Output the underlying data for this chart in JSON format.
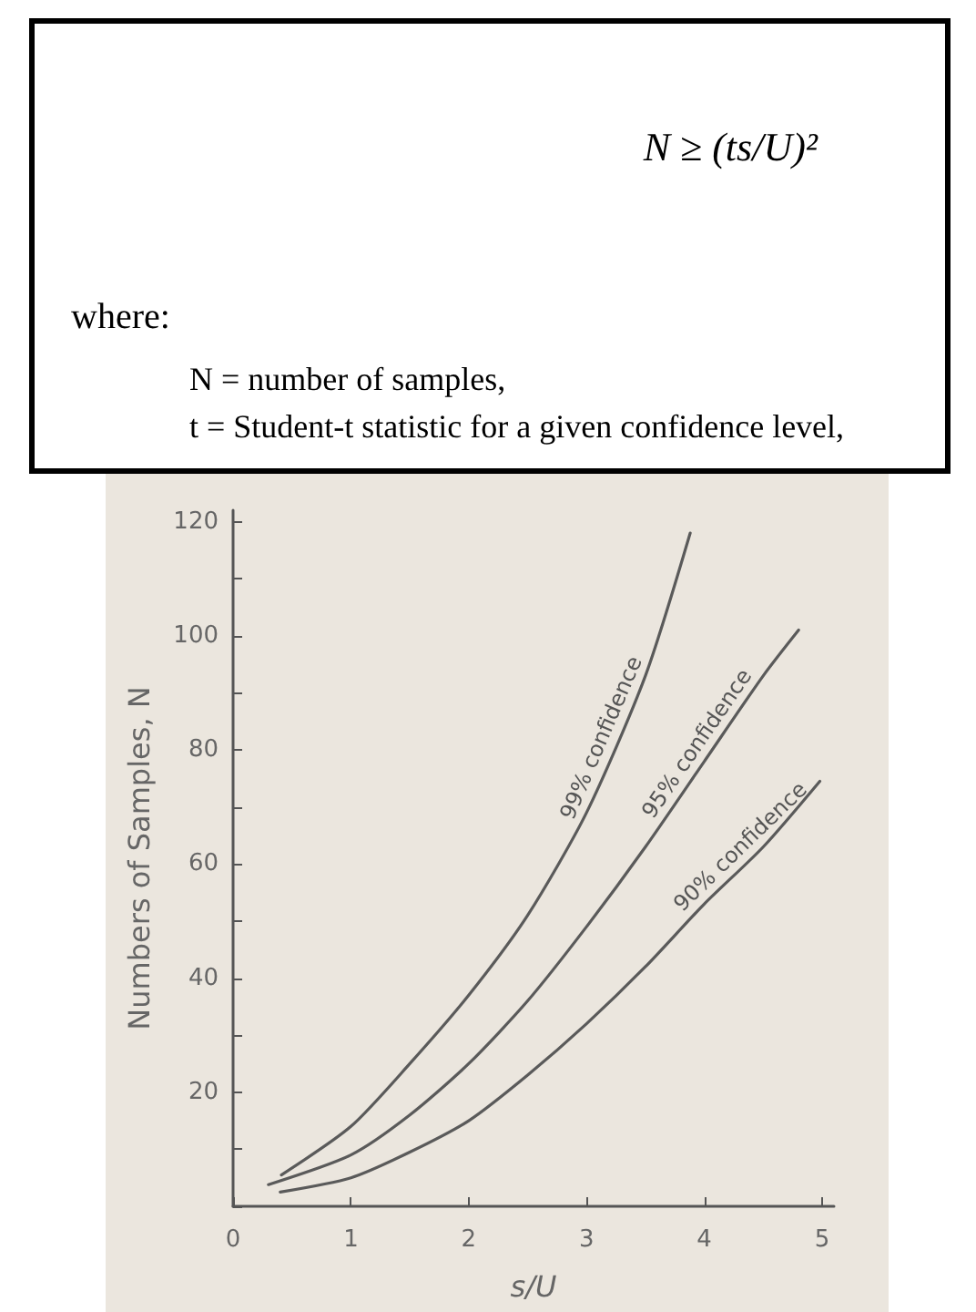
{
  "chart_data": [
    {
      "type": "other",
      "annotations": [
        "N ≥ (ts/U)²",
        "where:",
        "N = number of samples,",
        "t = Student-t statistic for a given confidence level,"
      ]
    },
    {
      "type": "line",
      "xlabel": "s/U",
      "ylabel": "Numbers of Samples, N",
      "xlim": [
        0,
        5.1
      ],
      "ylim": [
        0,
        122
      ],
      "xticks": [
        {
          "value": 0,
          "label": "0"
        },
        1,
        2,
        3,
        4,
        5
      ],
      "yticks": [
        {
          "value": 0,
          "label": null
        },
        {
          "value": 10,
          "label": null
        },
        20,
        {
          "value": 30,
          "label": null
        },
        40,
        {
          "value": 50,
          "label": null
        },
        60,
        {
          "value": 70,
          "label": null
        },
        80,
        {
          "value": 90,
          "label": null
        },
        100,
        {
          "value": 110,
          "label": null
        },
        120
      ],
      "grid": false,
      "marker": "none",
      "line_style": "solid",
      "series": [
        {
          "color": "#5a5a5a",
          "x": [
            0.41,
            1,
            1.5,
            2,
            2.5,
            3,
            3.5,
            3.88
          ],
          "values": [
            5.5,
            14,
            25,
            37,
            51,
            69,
            93,
            118
          ]
        },
        {
          "color": "#5a5a5a",
          "x": [
            0.3,
            1,
            1.5,
            2,
            2.5,
            3,
            3.5,
            4,
            4.5,
            4.8
          ],
          "values": [
            3.8,
            9,
            16,
            25,
            36,
            49,
            63,
            78,
            93,
            101
          ]
        },
        {
          "color": "#5a5a5a",
          "x": [
            0.4,
            1,
            1.5,
            2,
            2.5,
            3,
            3.5,
            4,
            4.5,
            4.98
          ],
          "values": [
            2.5,
            5,
            9.5,
            15,
            23,
            32,
            42,
            53,
            63,
            74.5
          ]
        }
      ],
      "annotations": [
        {
          "text": "99% confidence",
          "x": 3.25,
          "y": 81
        },
        {
          "text": "95% confidence",
          "x": 4.05,
          "y": 79.5
        },
        {
          "text": "90% confidence",
          "x": 4.4,
          "y": 61
        }
      ]
    }
  ]
}
